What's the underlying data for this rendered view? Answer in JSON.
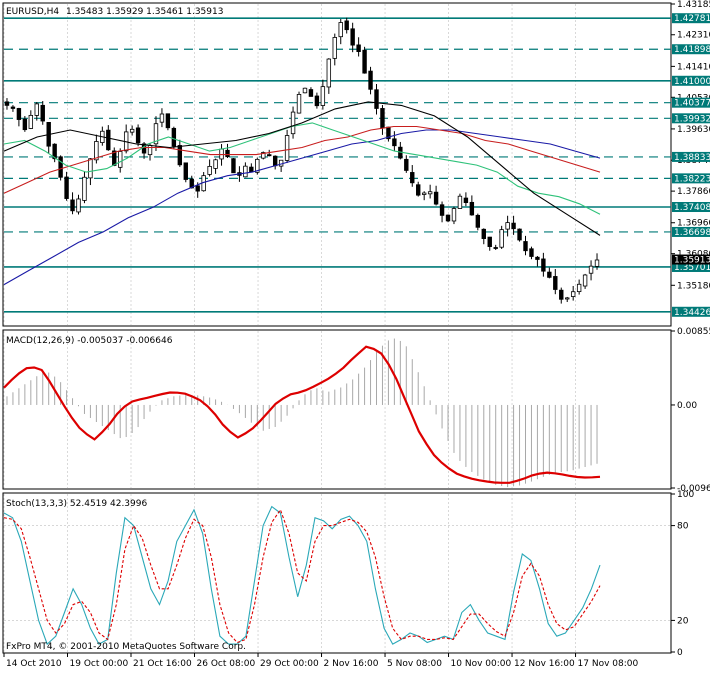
{
  "chart_data": {
    "type": "candlestick",
    "symbol_header": "EURUSD,H4",
    "ohlc_header": "1.35483 1.35929 1.35461 1.35913",
    "watermark": "FxPro MT4, © 2001-2010 MetaQuotes Software Corp.",
    "x_ticks": [
      "14 Oct 2010",
      "19 Oct 00:00",
      "21 Oct 16:00",
      "26 Oct 08:00",
      "29 Oct 00:00",
      "2 Nov 16:00",
      "5 Nov 08:00",
      "10 Nov 00:00",
      "12 Nov 16:00",
      "17 Nov 08:00"
    ],
    "price_panel": {
      "ylim": [
        1.3405,
        1.43185
      ],
      "y_ticks": [
        1.43185,
        1.4231,
        1.4141,
        1.4053,
        1.3963,
        1.3874,
        1.3786,
        1.3696,
        1.3608,
        1.3518
      ],
      "levels": [
        {
          "value": 1.42781,
          "label": "1.42781",
          "style": "solid"
        },
        {
          "value": 1.41898,
          "label": "1.41898",
          "style": "dashed"
        },
        {
          "value": 1.41,
          "label": "1.41000",
          "style": "solid"
        },
        {
          "value": 1.40377,
          "label": "1.40377",
          "style": "dashed"
        },
        {
          "value": 1.39932,
          "label": "1.39932",
          "style": "dashed"
        },
        {
          "value": 1.38833,
          "label": "1.38833",
          "style": "dashed"
        },
        {
          "value": 1.38223,
          "label": "1.38223",
          "style": "dashed"
        },
        {
          "value": 1.37408,
          "label": "1.37408",
          "style": "solid"
        },
        {
          "value": 1.36698,
          "label": "1.36698",
          "style": "dashed"
        },
        {
          "value": 1.35701,
          "label": "1.35701",
          "style": "solid"
        },
        {
          "value": 1.34426,
          "label": "1.34426",
          "style": "solid"
        }
      ],
      "current": {
        "value": 1.35913,
        "label": "1.35913"
      },
      "candle_count": 100,
      "close_path": [
        1.403,
        1.402,
        1.398,
        1.395,
        1.405,
        1.401,
        1.392,
        1.388,
        1.382,
        1.375,
        1.372,
        1.38,
        1.386,
        1.392,
        1.396,
        1.39,
        1.385,
        1.392,
        1.398,
        1.394,
        1.389,
        1.391,
        1.398,
        1.401,
        1.395,
        1.389,
        1.383,
        1.38,
        1.378,
        1.383,
        1.386,
        1.388,
        1.392,
        1.385,
        1.382,
        1.386,
        1.384,
        1.388,
        1.39,
        1.388,
        1.384,
        1.392,
        1.4,
        1.406,
        1.408,
        1.405,
        1.402,
        1.413,
        1.42,
        1.427,
        1.425,
        1.42,
        1.418,
        1.41,
        1.406,
        1.398,
        1.394,
        1.392,
        1.388,
        1.384,
        1.38,
        1.376,
        1.38,
        1.376,
        1.372,
        1.37,
        1.374,
        1.378,
        1.374,
        1.37,
        1.366,
        1.363,
        1.362,
        1.368,
        1.37,
        1.367,
        1.363,
        1.36,
        1.36,
        1.356,
        1.354,
        1.35,
        1.347,
        1.349,
        1.351,
        1.354,
        1.357,
        1.359
      ],
      "ma_fast": [
        1.392,
        1.393,
        1.39,
        1.386,
        1.384,
        1.385,
        1.388,
        1.392,
        1.394,
        1.392,
        1.39,
        1.391,
        1.393,
        1.395,
        1.397,
        1.398,
        1.396,
        1.394,
        1.392,
        1.39,
        1.389,
        1.388,
        1.387,
        1.386,
        1.384,
        1.38,
        1.378,
        1.377,
        1.375,
        1.372
      ],
      "ma_slow": [
        1.378,
        1.381,
        1.384,
        1.386,
        1.388,
        1.39,
        1.391,
        1.391,
        1.39,
        1.389,
        1.389,
        1.389,
        1.39,
        1.391,
        1.393,
        1.394,
        1.396,
        1.397,
        1.397,
        1.396,
        1.395,
        1.393,
        1.392,
        1.39,
        1.388,
        1.386,
        1.384
      ],
      "ma_long": [
        1.352,
        1.356,
        1.36,
        1.364,
        1.367,
        1.371,
        1.374,
        1.378,
        1.381,
        1.383,
        1.384,
        1.386,
        1.388,
        1.39,
        1.392,
        1.393,
        1.395,
        1.396,
        1.396,
        1.395,
        1.394,
        1.393,
        1.392,
        1.39,
        1.388
      ],
      "ma_black": [
        1.39,
        1.394,
        1.396,
        1.394,
        1.392,
        1.391,
        1.392,
        1.393,
        1.395,
        1.398,
        1.402,
        1.404,
        1.403,
        1.4,
        1.394,
        1.386,
        1.378,
        1.372,
        1.366
      ]
    },
    "macd_panel": {
      "label": "MACD(12,26,9) -0.005037 -0.006646",
      "ylim": [
        -0.0096,
        0.00855
      ],
      "y_ticks": [
        {
          "value": 0.00855,
          "label": "0.00855"
        },
        {
          "value": 0.0,
          "label": "0.00"
        },
        {
          "value": -0.0096,
          "label": "-0.00960"
        }
      ],
      "signal": [
        0.002,
        0.0035,
        0.0045,
        0.004,
        0.0015,
        -0.001,
        -0.003,
        -0.004,
        -0.0025,
        -0.0005,
        0.0005,
        0.0008,
        0.0012,
        0.0015,
        0.0013,
        0.0007,
        -0.0005,
        -0.0025,
        -0.0038,
        -0.003,
        -0.0015,
        0.0002,
        0.0012,
        0.0015,
        0.0022,
        0.003,
        0.004,
        0.0055,
        0.0068,
        0.0062,
        0.004,
        0.0005,
        -0.003,
        -0.0055,
        -0.007,
        -0.008,
        -0.0085,
        -0.0088,
        -0.009,
        -0.009,
        -0.0086,
        -0.008,
        -0.0078,
        -0.008,
        -0.0083,
        -0.0084,
        -0.0083
      ],
      "histogram": [
        0.001,
        0.002,
        0.003,
        0.004,
        0.003,
        0.001,
        -0.001,
        -0.002,
        -0.003,
        -0.004,
        -0.003,
        -0.001,
        0.0005,
        0.001,
        0.0012,
        0.0011,
        0.0008,
        0.0002,
        -0.0008,
        -0.002,
        -0.003,
        -0.0025,
        -0.001,
        0.001,
        0.002,
        0.0015,
        0.002,
        0.003,
        0.0045,
        0.0065,
        0.0078,
        0.0072,
        0.004,
        0.0005,
        -0.003,
        -0.006,
        -0.0075,
        -0.0085,
        -0.0092,
        -0.0095,
        -0.0093,
        -0.0088,
        -0.0082,
        -0.0078,
        -0.0076,
        -0.0072,
        -0.0068
      ]
    },
    "stoch_panel": {
      "label": "Stoch(13,3,3) 52.4519 42.3996",
      "ylim": [
        0,
        100
      ],
      "y_ticks": [
        {
          "value": 100,
          "label": "100"
        },
        {
          "value": 80,
          "label": "80"
        },
        {
          "value": 20,
          "label": "20"
        },
        {
          "value": 0,
          "label": "0"
        }
      ],
      "main": [
        88,
        85,
        70,
        45,
        20,
        5,
        10,
        25,
        40,
        30,
        15,
        5,
        8,
        50,
        85,
        80,
        60,
        40,
        30,
        45,
        70,
        80,
        90,
        75,
        40,
        10,
        5,
        5,
        10,
        45,
        80,
        92,
        88,
        60,
        35,
        55,
        85,
        83,
        78,
        84,
        86,
        80,
        70,
        40,
        15,
        5,
        8,
        12,
        10,
        6,
        8,
        10,
        8,
        25,
        30,
        20,
        12,
        10,
        8,
        38,
        62,
        58,
        40,
        18,
        10,
        12,
        20,
        28,
        40,
        55
      ],
      "signal": [
        85,
        84,
        78,
        60,
        40,
        20,
        12,
        18,
        30,
        32,
        25,
        12,
        8,
        30,
        65,
        80,
        72,
        55,
        40,
        40,
        55,
        72,
        84,
        80,
        60,
        30,
        12,
        6,
        8,
        30,
        60,
        82,
        90,
        75,
        50,
        45,
        70,
        80,
        80,
        82,
        84,
        82,
        76,
        60,
        35,
        15,
        8,
        10,
        10,
        8,
        8,
        9,
        8,
        16,
        24,
        24,
        18,
        13,
        10,
        25,
        48,
        56,
        48,
        30,
        18,
        14,
        16,
        24,
        32,
        42
      ]
    }
  }
}
